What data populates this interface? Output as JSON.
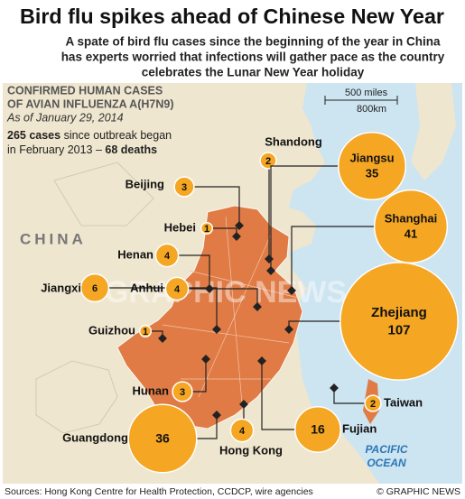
{
  "title": "Bird flu spikes ahead of Chinese New Year",
  "subtitle_lines": [
    "A spate of bird flu cases since the beginning of the year in China",
    "has experts worried that infections will gather pace as the country",
    "celebrates the Lunar New Year holiday"
  ],
  "box": {
    "heading_lines": [
      "CONFIRMED HUMAN CASES",
      "OF AVIAN INFLUENZA A(H7N9)"
    ],
    "date": "As of January 29, 2014",
    "cases": "265 cases",
    "cases_text": "since outbreak began",
    "line2": "in February 2013 –",
    "deaths": "68 deaths"
  },
  "scale": {
    "miles": "500 miles",
    "km": "800km"
  },
  "country": "CHINA",
  "ocean_lines": [
    "PACIFIC",
    "OCEAN"
  ],
  "watermark": "GRAPHIC NEWS",
  "regions": [
    {
      "name": "Shandong",
      "cases": 2
    },
    {
      "name": "Beijing",
      "cases": 3
    },
    {
      "name": "Hebei",
      "cases": 1
    },
    {
      "name": "Henan",
      "cases": 4
    },
    {
      "name": "Jiangxi",
      "cases": 6
    },
    {
      "name": "Anhui",
      "cases": 4
    },
    {
      "name": "Guizhou",
      "cases": 1
    },
    {
      "name": "Hunan",
      "cases": 3
    },
    {
      "name": "Guangdong",
      "cases": 36
    },
    {
      "name": "Hong Kong",
      "cases": 4
    },
    {
      "name": "Fujian",
      "cases": 16
    },
    {
      "name": "Taiwan",
      "cases": 2
    },
    {
      "name": "Zhejiang",
      "cases": 107
    },
    {
      "name": "Shanghai",
      "cases": 41
    },
    {
      "name": "Jiangsu",
      "cases": 35
    }
  ],
  "source": "Sources: Hong Kong Centre for Health Protection, CCDCP, wire agencies",
  "credit": "© GRAPHIC NEWS"
}
